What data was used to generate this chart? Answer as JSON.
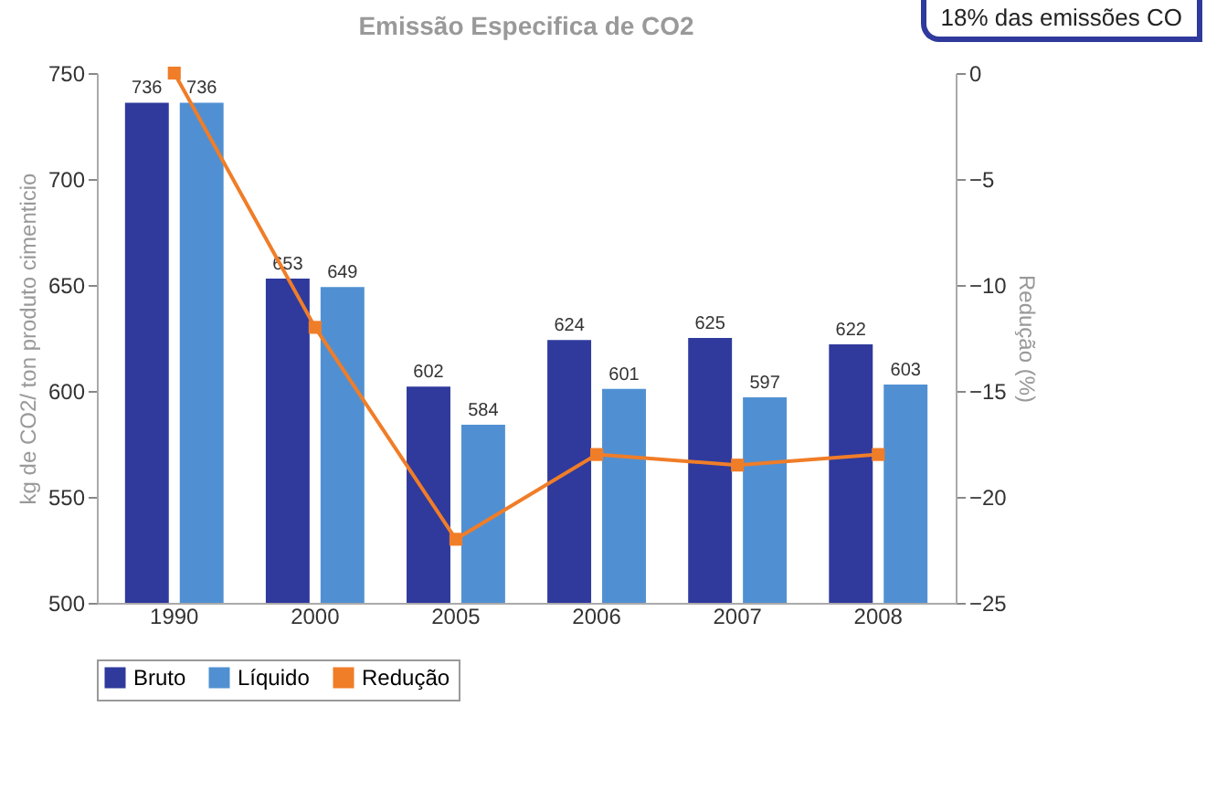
{
  "chart_data": {
    "type": "bar",
    "title": "Emissão Especifica de CO2",
    "ylabel": "kg de CO2/ ton produto cimenticio",
    "y2label": "Redução (%)",
    "categories": [
      "1990",
      "2000",
      "2005",
      "2006",
      "2007",
      "2008"
    ],
    "series": [
      {
        "name": "Bruto",
        "color": "#2f3a9c",
        "values": [
          736,
          653,
          602,
          624,
          625,
          622
        ],
        "value_labels": [
          "736",
          "653",
          "602",
          "624",
          "625",
          "622"
        ]
      },
      {
        "name": "Líquido",
        "color": "#5090d2",
        "values": [
          736,
          649,
          584,
          601,
          597,
          603
        ],
        "value_labels": [
          "736",
          "649",
          "584",
          "601",
          "597",
          "603"
        ]
      },
      {
        "name": "Redução",
        "type": "line",
        "axis": "y2",
        "color": "#f07d28",
        "values": [
          0,
          -12,
          -22,
          -18,
          -18.5,
          -18
        ]
      }
    ],
    "ylim": [
      500,
      750
    ],
    "yticks": [
      500,
      550,
      600,
      650,
      700,
      750
    ],
    "y2lim": [
      -25,
      0
    ],
    "y2ticks": [
      -25,
      -20,
      -15,
      -10,
      -5,
      0
    ],
    "marker": "square",
    "line_style": "solid",
    "grid": false,
    "legend": "bottom",
    "annotations": [
      "18% das emissões CO"
    ]
  }
}
